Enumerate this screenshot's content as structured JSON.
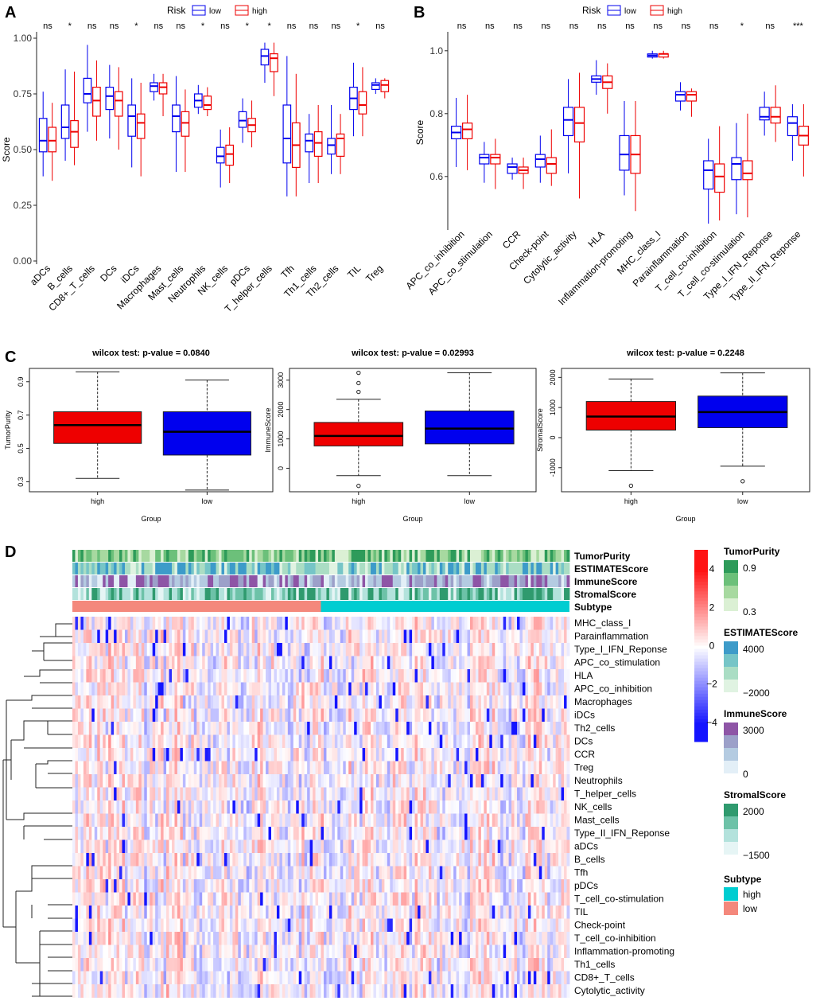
{
  "panel_labels": {
    "a": "A",
    "b": "B",
    "c": "C",
    "d": "D"
  },
  "colors": {
    "low": "#0000EE",
    "high": "#EE0000",
    "heat_high": "#EE0000",
    "heat_low": "#0000EE",
    "subtype_high": "#00CDD1",
    "subtype_low": "#F4887C"
  },
  "chart_data": [
    {
      "id": "A",
      "type": "box",
      "legend_title": "Risk",
      "legend": [
        "low",
        "high"
      ],
      "ylabel": "Score",
      "ylim": [
        0,
        1
      ],
      "yticks": [
        "0.00",
        "0.25",
        "0.50",
        "0.75",
        "1.00"
      ],
      "ytick_values": [
        0,
        0.25,
        0.5,
        0.75,
        1
      ],
      "categories": [
        "aDCs",
        "B_cells",
        "CD8+_T_cells",
        "DCs",
        "iDCs",
        "Macrophages",
        "Mast_cells",
        "Neutrophils",
        "NK_cells",
        "pDCs",
        "T_helper_cells",
        "Tfh",
        "Th1_cells",
        "Th2_cells",
        "TIL",
        "Treg"
      ],
      "significance": [
        "ns",
        "*",
        "ns",
        "ns",
        "*",
        "ns",
        "ns",
        "*",
        "ns",
        "*",
        "*",
        "ns",
        "ns",
        "ns",
        "*",
        "ns"
      ],
      "series": [
        {
          "name": "low",
          "boxes": [
            [
              0.38,
              0.49,
              0.54,
              0.64,
              0.76
            ],
            [
              0.45,
              0.55,
              0.6,
              0.7,
              0.86
            ],
            [
              0.58,
              0.71,
              0.75,
              0.82,
              0.97
            ],
            [
              0.55,
              0.68,
              0.74,
              0.78,
              0.88
            ],
            [
              0.42,
              0.56,
              0.65,
              0.7,
              0.82
            ],
            [
              0.72,
              0.76,
              0.785,
              0.8,
              0.84
            ],
            [
              0.4,
              0.58,
              0.65,
              0.7,
              0.83
            ],
            [
              0.66,
              0.69,
              0.72,
              0.75,
              0.79
            ],
            [
              0.33,
              0.44,
              0.47,
              0.51,
              0.59
            ],
            [
              0.53,
              0.6,
              0.63,
              0.67,
              0.73
            ],
            [
              0.8,
              0.88,
              0.92,
              0.95,
              0.98
            ],
            [
              0.29,
              0.44,
              0.55,
              0.7,
              0.92
            ],
            [
              0.35,
              0.49,
              0.54,
              0.57,
              0.66
            ],
            [
              0.39,
              0.48,
              0.52,
              0.55,
              0.7
            ],
            [
              0.56,
              0.68,
              0.73,
              0.78,
              0.89
            ],
            [
              0.75,
              0.77,
              0.79,
              0.8,
              0.82
            ]
          ]
        },
        {
          "name": "high",
          "boxes": [
            [
              0.36,
              0.49,
              0.54,
              0.6,
              0.71
            ],
            [
              0.43,
              0.51,
              0.58,
              0.63,
              0.85
            ],
            [
              0.54,
              0.65,
              0.72,
              0.78,
              0.9
            ],
            [
              0.5,
              0.65,
              0.72,
              0.76,
              0.87
            ],
            [
              0.38,
              0.55,
              0.62,
              0.66,
              0.8
            ],
            [
              0.65,
              0.75,
              0.78,
              0.8,
              0.84
            ],
            [
              0.4,
              0.56,
              0.62,
              0.67,
              0.77
            ],
            [
              0.65,
              0.68,
              0.7,
              0.74,
              0.78
            ],
            [
              0.35,
              0.43,
              0.48,
              0.52,
              0.6
            ],
            [
              0.51,
              0.58,
              0.61,
              0.64,
              0.72
            ],
            [
              0.74,
              0.85,
              0.91,
              0.93,
              0.98
            ],
            [
              0.29,
              0.42,
              0.52,
              0.62,
              0.84
            ],
            [
              0.35,
              0.47,
              0.53,
              0.58,
              0.7
            ],
            [
              0.39,
              0.47,
              0.55,
              0.57,
              0.66
            ],
            [
              0.56,
              0.66,
              0.7,
              0.76,
              0.87
            ],
            [
              0.73,
              0.76,
              0.79,
              0.81,
              0.82
            ]
          ]
        }
      ]
    },
    {
      "id": "B",
      "type": "box",
      "legend_title": "Risk",
      "legend": [
        "low",
        "high"
      ],
      "ylabel": "Score",
      "ylim": [
        0.44,
        1.04
      ],
      "yticks": [
        "0.6",
        "0.8",
        "1.0"
      ],
      "ytick_values": [
        0.6,
        0.8,
        1.0
      ],
      "categories": [
        "APC_co_inhibition",
        "APC_co_stimulation",
        "CCR",
        "Check-point",
        "Cytolytic_activity",
        "HLA",
        "Inflammation-promoting",
        "MHC_class_I",
        "Parainflammation",
        "T_cell_co-inhibition",
        "T_cell_co-stimulation",
        "Type_I_IFN_Reponse",
        "Type_II_IFN_Reponse"
      ],
      "significance": [
        "ns",
        "ns",
        "ns",
        "ns",
        "ns",
        "ns",
        "ns",
        "ns",
        "ns",
        "ns",
        "*",
        "ns",
        "***"
      ],
      "series": [
        {
          "name": "low",
          "boxes": [
            [
              0.63,
              0.72,
              0.74,
              0.76,
              0.85
            ],
            [
              0.58,
              0.64,
              0.66,
              0.67,
              0.71
            ],
            [
              0.59,
              0.61,
              0.63,
              0.64,
              0.66
            ],
            [
              0.58,
              0.63,
              0.655,
              0.67,
              0.73
            ],
            [
              0.61,
              0.73,
              0.78,
              0.82,
              0.91
            ],
            [
              0.86,
              0.9,
              0.91,
              0.92,
              0.97
            ],
            [
              0.54,
              0.62,
              0.67,
              0.73,
              0.84
            ],
            [
              0.975,
              0.98,
              0.985,
              0.99,
              1.0
            ],
            [
              0.81,
              0.84,
              0.86,
              0.87,
              0.9
            ],
            [
              0.45,
              0.56,
              0.62,
              0.65,
              0.72
            ],
            [
              0.48,
              0.59,
              0.64,
              0.66,
              0.77
            ],
            [
              0.73,
              0.78,
              0.79,
              0.82,
              0.87
            ],
            [
              0.65,
              0.73,
              0.77,
              0.79,
              0.83
            ]
          ]
        },
        {
          "name": "high",
          "boxes": [
            [
              0.62,
              0.72,
              0.75,
              0.77,
              0.86
            ],
            [
              0.56,
              0.64,
              0.66,
              0.67,
              0.72
            ],
            [
              0.56,
              0.61,
              0.62,
              0.63,
              0.66
            ],
            [
              0.57,
              0.61,
              0.64,
              0.66,
              0.75
            ],
            [
              0.53,
              0.71,
              0.77,
              0.82,
              0.93
            ],
            [
              0.8,
              0.88,
              0.9,
              0.92,
              0.96
            ],
            [
              0.49,
              0.61,
              0.67,
              0.73,
              0.84
            ],
            [
              0.975,
              0.98,
              0.99,
              0.99,
              1.0
            ],
            [
              0.79,
              0.84,
              0.86,
              0.87,
              0.88
            ],
            [
              0.46,
              0.55,
              0.6,
              0.64,
              0.76
            ],
            [
              0.47,
              0.59,
              0.61,
              0.65,
              0.8
            ],
            [
              0.71,
              0.77,
              0.79,
              0.82,
              0.89
            ],
            [
              0.6,
              0.7,
              0.73,
              0.76,
              0.83
            ]
          ]
        }
      ]
    },
    {
      "id": "C1",
      "type": "box",
      "title": "wilcox test: p-value = 0.0840",
      "ylabel": "TumorPurity",
      "xlabel": "Group",
      "categories": [
        "high",
        "low"
      ],
      "ylim": [
        0.24,
        0.98
      ],
      "yticks": [
        "0.3",
        "0.5",
        "0.7",
        "0.9"
      ],
      "ytick_values": [
        0.3,
        0.5,
        0.7,
        0.9
      ],
      "boxes": [
        [
          0.32,
          0.53,
          0.64,
          0.72,
          0.96
        ],
        [
          0.25,
          0.46,
          0.6,
          0.72,
          0.91
        ]
      ],
      "outliers": [
        [],
        []
      ]
    },
    {
      "id": "C2",
      "type": "box",
      "title": "wilcox test: p-value = 0.02993",
      "ylabel": "ImmuneScore",
      "xlabel": "Group",
      "categories": [
        "high",
        "low"
      ],
      "ylim": [
        -800,
        3400
      ],
      "yticks": [
        "0",
        "1000",
        "2000",
        "3000"
      ],
      "ytick_values": [
        0,
        1000,
        2000,
        3000
      ],
      "boxes": [
        [
          -250,
          760,
          1100,
          1560,
          2350
        ],
        [
          -250,
          830,
          1350,
          1950,
          3250
        ]
      ],
      "outliers": [
        [
          -600,
          2600,
          2900,
          3250
        ],
        []
      ]
    },
    {
      "id": "C3",
      "type": "box",
      "title": "wilcox test: p-value = 0.2248",
      "ylabel": "StromalScore",
      "xlabel": "Group",
      "categories": [
        "high",
        "low"
      ],
      "ylim": [
        -1800,
        2300
      ],
      "yticks": [
        "-1000",
        "0",
        "1000",
        "2000"
      ],
      "ytick_values": [
        -1000,
        0,
        1000,
        2000
      ],
      "boxes": [
        [
          -1100,
          250,
          700,
          1200,
          1950
        ],
        [
          -950,
          330,
          850,
          1380,
          2150
        ]
      ],
      "outliers": [
        [
          -1600
        ],
        [
          -1450
        ]
      ]
    },
    {
      "id": "D",
      "type": "heatmap",
      "annotation_rows": [
        "TumorPurity",
        "ESTIMATEScore",
        "ImmuneScore",
        "StromalScore",
        "Subtype"
      ],
      "rows": [
        "MHC_class_I",
        "Parainflammation",
        "Type_I_IFN_Reponse",
        "APC_co_stimulation",
        "HLA",
        "APC_co_inhibition",
        "Macrophages",
        "iDCs",
        "Th2_cells",
        "DCs",
        "CCR",
        "Treg",
        "Neutrophils",
        "T_helper_cells",
        "NK_cells",
        "Mast_cells",
        "Type_II_IFN_Reponse",
        "aDCs",
        "B_cells",
        "Tfh",
        "pDCs",
        "T_cell_co-stimulation",
        "TIL",
        "Check-point",
        "T_cell_co-inhibition",
        "Inflammation-promoting",
        "Th1_cells",
        "CD8+_T_cells",
        "Cytolytic_activity"
      ],
      "colorbar": {
        "ticks": [
          "4",
          "2",
          "0",
          "−2",
          "−4"
        ],
        "tick_values": [
          4,
          2,
          0,
          -2,
          -4
        ],
        "range": [
          -5,
          5
        ]
      },
      "legends": [
        {
          "title": "TumorPurity",
          "labels": [
            "0.9",
            "0.3"
          ],
          "colors": [
            "#2E9B5A",
            "#6CC07A",
            "#A7D9A0",
            "#DBF0D4"
          ]
        },
        {
          "title": "ESTIMATEScore",
          "labels": [
            "4000",
            "−2000"
          ],
          "colors": [
            "#3D9BC9",
            "#76C5C7",
            "#AADDC4",
            "#E0F3E2"
          ]
        },
        {
          "title": "ImmuneScore",
          "labels": [
            "3000",
            "0"
          ],
          "colors": [
            "#8E55A6",
            "#9CA0C9",
            "#B4CBE1",
            "#E3EFF7"
          ]
        },
        {
          "title": "StromalScore",
          "labels": [
            "2000",
            "−1500"
          ],
          "colors": [
            "#2F9A6E",
            "#6DC2A8",
            "#B3E2DC",
            "#E6F5F5"
          ]
        },
        {
          "title": "Subtype",
          "items": [
            {
              "label": "high",
              "color": "#00CDD1"
            },
            {
              "label": "low",
              "color": "#F4887C"
            }
          ]
        }
      ]
    }
  ]
}
